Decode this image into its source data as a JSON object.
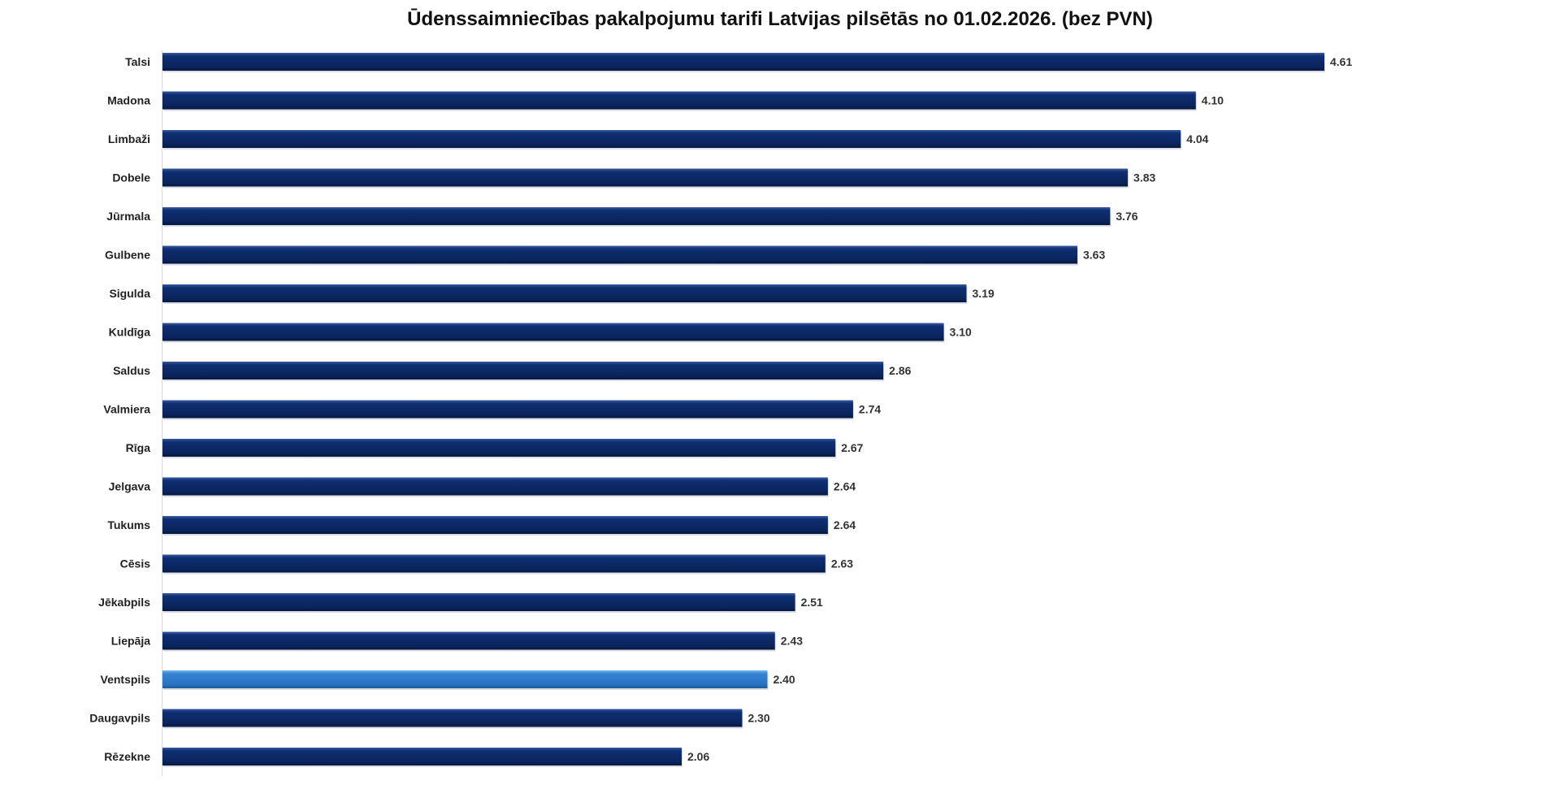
{
  "chart_data": {
    "type": "bar",
    "orientation": "horizontal",
    "title": "Ūdenssaimniecības pakalpojumu tarifi Latvijas pilsētās no 01.02.2026. (bez PVN)",
    "xlabel": "",
    "ylabel": "",
    "xlim": [
      0,
      4.61
    ],
    "grid": false,
    "categories": [
      "Talsi",
      "Madona",
      "Limbaži",
      "Dobele",
      "Jūrmala",
      "Gulbene",
      "Sigulda",
      "Kuldīga",
      "Saldus",
      "Valmiera",
      "Rīga",
      "Jelgava",
      "Tukums",
      "Cēsis",
      "Jēkabpils",
      "Liepāja",
      "Ventspils",
      "Daugavpils",
      "Rēzekne"
    ],
    "values": [
      4.61,
      4.1,
      4.04,
      3.83,
      3.76,
      3.63,
      3.19,
      3.1,
      2.86,
      2.74,
      2.67,
      2.64,
      2.64,
      2.63,
      2.51,
      2.43,
      2.4,
      2.3,
      2.06
    ],
    "value_labels": [
      "4.61",
      "4.10",
      "4.04",
      "3.83",
      "3.76",
      "3.63",
      "3.19",
      "3.10",
      "2.86",
      "2.74",
      "2.67",
      "2.64",
      "2.64",
      "2.63",
      "2.51",
      "2.43",
      "2.40",
      "2.30",
      "2.06"
    ],
    "highlight": "Ventspils",
    "colors": {
      "bar": "#0c2a66",
      "highlight": "#2f7bc9",
      "axis": "#d9d9d9",
      "label": "#333333"
    }
  }
}
